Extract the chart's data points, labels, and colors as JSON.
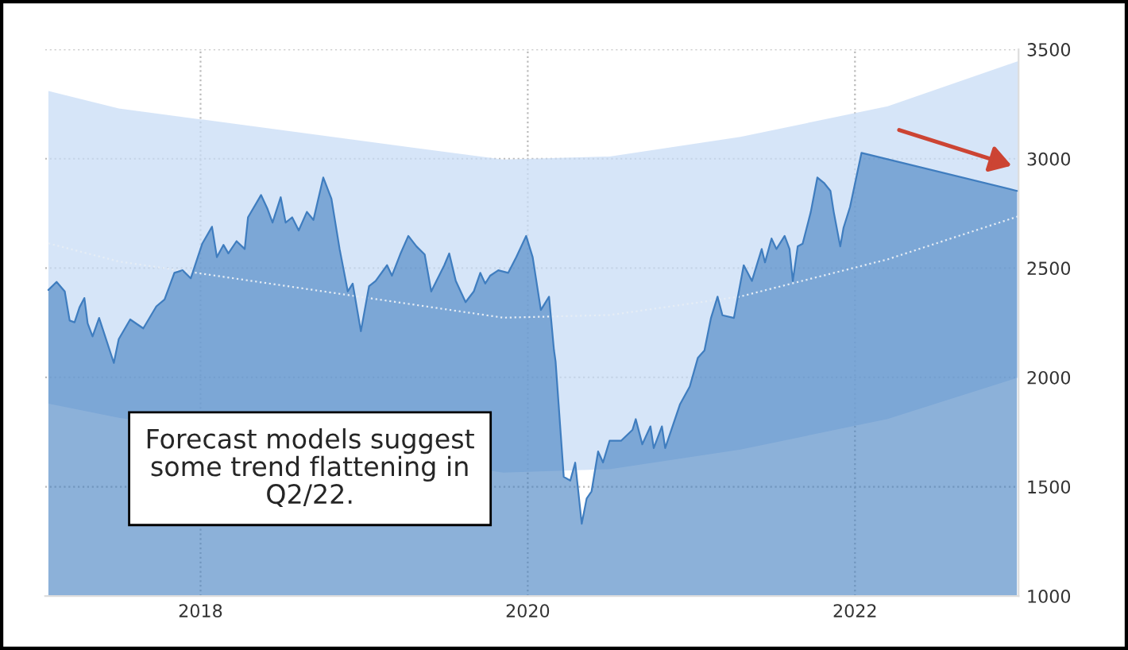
{
  "chart_data": {
    "type": "area",
    "x": [
      2017.07,
      2017.12,
      2017.17,
      2017.2,
      2017.23,
      2017.26,
      2017.29,
      2017.31,
      2017.34,
      2017.38,
      2017.47,
      2017.5,
      2017.57,
      2017.65,
      2017.73,
      2017.78,
      2017.84,
      2017.89,
      2017.94,
      2018.01,
      2018.07,
      2018.1,
      2018.14,
      2018.17,
      2018.22,
      2018.27,
      2018.29,
      2018.37,
      2018.41,
      2018.44,
      2018.49,
      2018.52,
      2018.56,
      2018.6,
      2018.65,
      2018.69,
      2018.75,
      2018.8,
      2018.85,
      2018.9,
      2018.93,
      2018.98,
      2019.03,
      2019.07,
      2019.14,
      2019.17,
      2019.22,
      2019.27,
      2019.32,
      2019.37,
      2019.41,
      2019.49,
      2019.52,
      2019.56,
      2019.62,
      2019.67,
      2019.71,
      2019.74,
      2019.77,
      2019.82,
      2019.88,
      2019.93,
      2019.99,
      2020.03,
      2020.08,
      2020.13,
      2020.16,
      2020.17,
      2020.22,
      2020.26,
      2020.29,
      2020.33,
      2020.36,
      2020.39,
      2020.43,
      2020.46,
      2020.5,
      2020.57,
      2020.64,
      2020.66,
      2020.7,
      2020.75,
      2020.77,
      2020.82,
      2020.84,
      2020.93,
      2020.99,
      2021.04,
      2021.08,
      2021.12,
      2021.16,
      2021.19,
      2021.26,
      2021.32,
      2021.37,
      2021.43,
      2021.45,
      2021.49,
      2021.52,
      2021.57,
      2021.6,
      2021.62,
      2021.65,
      2021.68,
      2021.73,
      2021.77,
      2021.81,
      2021.85,
      2021.87,
      2021.91,
      2021.93,
      2021.97,
      2022.04,
      2022.99
    ],
    "series": [
      {
        "color": "#3f7dbf",
        "values": [
          2400,
          2437,
          2393,
          2260,
          2252,
          2320,
          2363,
          2247,
          2187,
          2272,
          2066,
          2175,
          2265,
          2224,
          2325,
          2356,
          2478,
          2490,
          2453,
          2611,
          2689,
          2550,
          2606,
          2567,
          2623,
          2587,
          2732,
          2834,
          2769,
          2708,
          2824,
          2708,
          2732,
          2672,
          2757,
          2720,
          2914,
          2817,
          2587,
          2393,
          2429,
          2211,
          2417,
          2441,
          2513,
          2465,
          2562,
          2647,
          2599,
          2562,
          2393,
          2513,
          2567,
          2441,
          2344,
          2393,
          2478,
          2429,
          2465,
          2490,
          2478,
          2550,
          2647,
          2550,
          2308,
          2369,
          2126,
          2073,
          1545,
          1528,
          1610,
          1331,
          1446,
          1479,
          1661,
          1611,
          1710,
          1710,
          1760,
          1809,
          1694,
          1776,
          1677,
          1776,
          1677,
          1876,
          1958,
          2090,
          2123,
          2272,
          2369,
          2284,
          2272,
          2513,
          2441,
          2587,
          2526,
          2635,
          2587,
          2647,
          2587,
          2441,
          2599,
          2611,
          2757,
          2914,
          2890,
          2853,
          2757,
          2599,
          2684,
          2780,
          3027,
          2853
        ]
      },
      {
        "type": "line",
        "color": "#e6edf5",
        "line_style": "dotted",
        "x": [
          2017.07,
          2017.5,
          2019.85,
          2020.5,
          2021.3,
          2022.2,
          2023
        ],
        "values": [
          2613,
          2530,
          2273,
          2285,
          2370,
          2540,
          2737
        ],
        "lower": [
          1880,
          1815,
          1565,
          1580,
          1670,
          1810,
          2000
        ],
        "upper": [
          3310,
          3230,
          2996,
          3010,
          3100,
          3240,
          3447
        ]
      }
    ],
    "xlim": [
      2017.05,
      2023.0
    ],
    "ylim": [
      1000,
      3500
    ],
    "xticks": [
      2018,
      2020,
      2022
    ],
    "yticks": [
      1000,
      1500,
      2000,
      2500,
      3000,
      3500
    ],
    "grid": true,
    "annotations": [
      "Forecast models suggest some trend flattening in Q2/22."
    ]
  }
}
